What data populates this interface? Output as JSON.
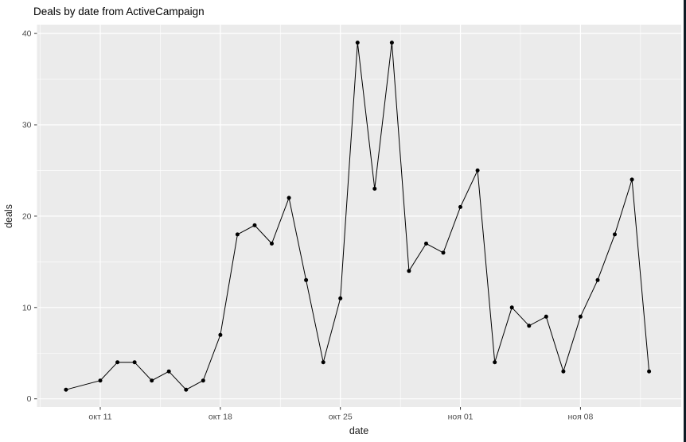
{
  "window": {
    "right_border_color": "#0e1b24",
    "background": "#ffffff"
  },
  "chart_data": {
    "type": "line",
    "title": "Deals by date from ActiveCampaign",
    "xlabel": "date",
    "ylabel": "deals",
    "legend": false,
    "grid": true,
    "y_ticks": [
      0,
      10,
      20,
      30,
      40
    ],
    "ylim": [
      -0.9,
      40.9
    ],
    "x_ticks": [
      {
        "label": "окт 11",
        "day": 2
      },
      {
        "label": "окт 18",
        "day": 9
      },
      {
        "label": "окт 25",
        "day": 16
      },
      {
        "label": "ноя 01",
        "day": 23
      },
      {
        "label": "ноя 08",
        "day": 30
      }
    ],
    "series": [
      {
        "name": "deals",
        "points": [
          {
            "date": "окт 09",
            "day": 0,
            "value": 1
          },
          {
            "date": "окт 11",
            "day": 2,
            "value": 2
          },
          {
            "date": "окт 12",
            "day": 3,
            "value": 4
          },
          {
            "date": "окт 13",
            "day": 4,
            "value": 4
          },
          {
            "date": "окт 14",
            "day": 5,
            "value": 2
          },
          {
            "date": "окт 15",
            "day": 6,
            "value": 3
          },
          {
            "date": "окт 16",
            "day": 7,
            "value": 1
          },
          {
            "date": "окт 17",
            "day": 8,
            "value": 2
          },
          {
            "date": "окт 18",
            "day": 9,
            "value": 7
          },
          {
            "date": "окт 19",
            "day": 10,
            "value": 18
          },
          {
            "date": "окт 20",
            "day": 11,
            "value": 19
          },
          {
            "date": "окт 21",
            "day": 12,
            "value": 17
          },
          {
            "date": "окт 22",
            "day": 13,
            "value": 22
          },
          {
            "date": "окт 23",
            "day": 14,
            "value": 13
          },
          {
            "date": "окт 24",
            "day": 15,
            "value": 4
          },
          {
            "date": "окт 25",
            "day": 16,
            "value": 11
          },
          {
            "date": "окт 26",
            "day": 17,
            "value": 39
          },
          {
            "date": "окт 27",
            "day": 18,
            "value": 23
          },
          {
            "date": "окт 28",
            "day": 19,
            "value": 39
          },
          {
            "date": "окт 29",
            "day": 20,
            "value": 14
          },
          {
            "date": "окт 30",
            "day": 21,
            "value": 17
          },
          {
            "date": "окт 31",
            "day": 22,
            "value": 16
          },
          {
            "date": "ноя 01",
            "day": 23,
            "value": 21
          },
          {
            "date": "ноя 02",
            "day": 24,
            "value": 25
          },
          {
            "date": "ноя 03",
            "day": 25,
            "value": 4
          },
          {
            "date": "ноя 04",
            "day": 26,
            "value": 10
          },
          {
            "date": "ноя 05",
            "day": 27,
            "value": 8
          },
          {
            "date": "ноя 06",
            "day": 28,
            "value": 9
          },
          {
            "date": "ноя 07",
            "day": 29,
            "value": 3
          },
          {
            "date": "ноя 08",
            "day": 30,
            "value": 9
          },
          {
            "date": "ноя 09",
            "day": 31,
            "value": 13
          },
          {
            "date": "ноя 10",
            "day": 32,
            "value": 18
          },
          {
            "date": "ноя 11",
            "day": 33,
            "value": 24
          },
          {
            "date": "ноя 12",
            "day": 34,
            "value": 3
          }
        ]
      }
    ],
    "style": {
      "panel_background": "#EBEBEB",
      "grid_color": "#FFFFFF",
      "line_color": "#000000",
      "point_color": "#000000",
      "tick_mark_color": "#333333",
      "tick_label_color": "#4d4d4d",
      "title_color": "#000000",
      "axis_title_color": "#1a1a1a"
    }
  }
}
